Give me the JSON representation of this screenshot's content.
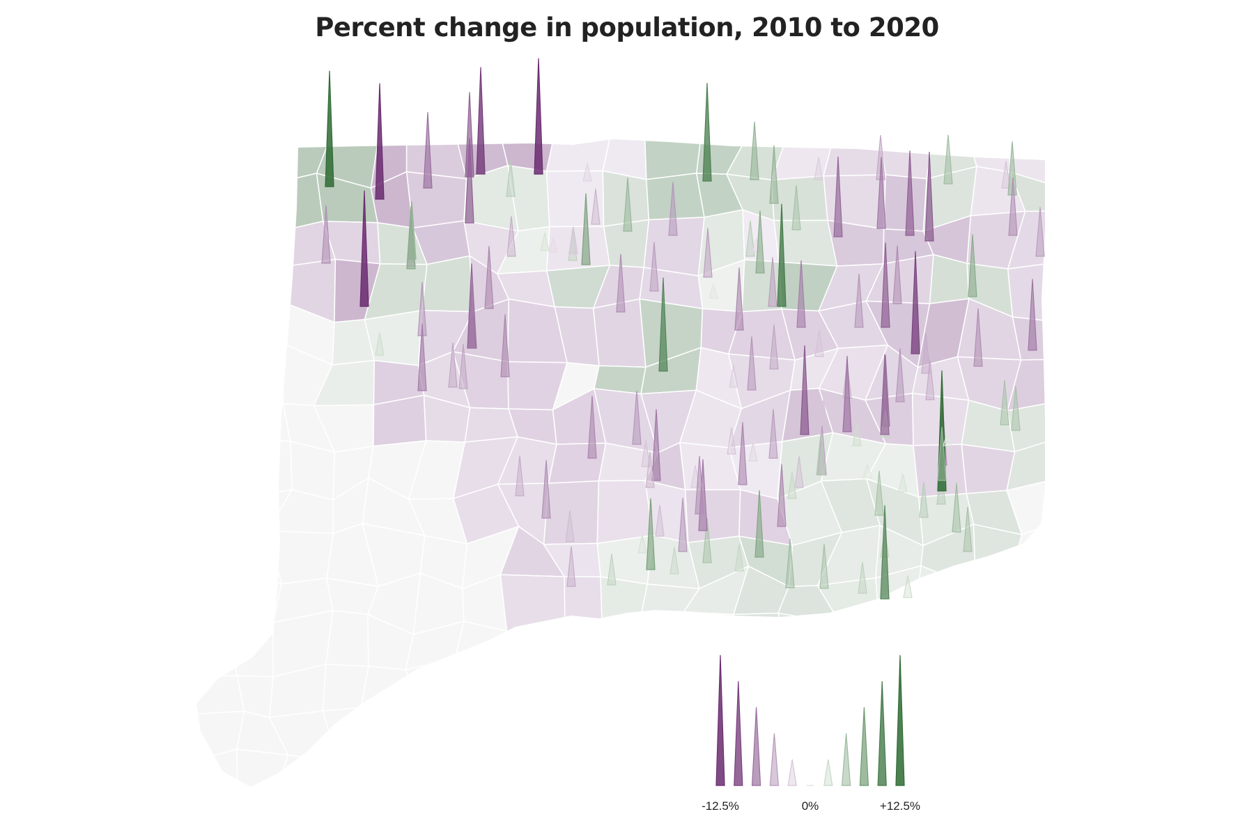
{
  "title": "Percent change in population, 2010 to 2020",
  "legend": {
    "labels": [
      "-12.5%",
      "0%",
      "+12.5%"
    ],
    "steps": [
      -12.5,
      -10,
      -7.5,
      -5,
      -2.5,
      0,
      2.5,
      5,
      7.5,
      10,
      12.5
    ]
  },
  "colors": {
    "decline": "#6a2c70",
    "growth": "#2f6b34",
    "neutral": "#ece8ee",
    "border": "#ffffff",
    "text": "#222222"
  },
  "spikes": [
    {
      "v": 13.0
    },
    {
      "v": -13.0
    },
    {
      "v": -8.5
    },
    {
      "v": -9.5
    },
    {
      "v": -12.0
    },
    {
      "v": -13.0
    },
    {
      "v": -2.0
    },
    {
      "v": -6.5
    },
    {
      "v": -13.0
    },
    {
      "v": -5.0
    },
    {
      "v": -9.5
    },
    {
      "v": 4.0
    },
    {
      "v": 11.0
    },
    {
      "v": 6.5
    },
    {
      "v": -2.5
    },
    {
      "v": -5.0
    },
    {
      "v": -3.0
    },
    {
      "v": 5.5
    },
    {
      "v": 6.5
    },
    {
      "v": 5.0
    },
    {
      "v": 4.0
    },
    {
      "v": -9.0
    },
    {
      "v": -8.0
    },
    {
      "v": -9.5
    },
    {
      "v": -10.0
    },
    {
      "v": -6.5
    },
    {
      "v": -11.5
    },
    {
      "v": 6.0
    },
    {
      "v": -6.5
    },
    {
      "v": -8.0
    },
    {
      "v": -5.5
    },
    {
      "v": 7.0
    },
    {
      "v": 6.0
    },
    {
      "v": -4.0
    },
    {
      "v": -6.0
    },
    {
      "v": 6.5
    },
    {
      "v": -4.5
    },
    {
      "v": -7.0
    },
    {
      "v": -6.0
    },
    {
      "v": -7.5
    },
    {
      "v": -9.5
    },
    {
      "v": -7.0
    },
    {
      "v": -5.0
    },
    {
      "v": -8.0
    },
    {
      "v": 7.0
    },
    {
      "v": 2.5
    },
    {
      "v": -5.0
    },
    {
      "v": 3.5
    },
    {
      "v": 2.0
    },
    {
      "v": -1.5
    },
    {
      "v": -3.0
    },
    {
      "v": 8.0
    },
    {
      "v": 10.5
    },
    {
      "v": -5.5
    },
    {
      "v": -6.5
    },
    {
      "v": -5.5
    },
    {
      "v": -1.5
    },
    {
      "v": -7.0
    },
    {
      "v": 7.0
    },
    {
      "v": 11.5
    },
    {
      "v": -6.0
    },
    {
      "v": 1.5
    },
    {
      "v": -5.5
    },
    {
      "v": -5.0
    },
    {
      "v": -7.5
    },
    {
      "v": -3.0
    },
    {
      "v": -4.0
    },
    {
      "v": -6.0
    },
    {
      "v": -9.5
    },
    {
      "v": -8.0
    },
    {
      "v": -4.5
    },
    {
      "v": -6.5
    },
    {
      "v": -6.0
    },
    {
      "v": 3.0
    },
    {
      "v": -4.5
    },
    {
      "v": 4.0
    },
    {
      "v": 5.0
    },
    {
      "v": 5.0
    },
    {
      "v": -6.5
    },
    {
      "v": 13.5
    },
    {
      "v": 4.0
    },
    {
      "v": 5.5
    },
    {
      "v": 5.0
    },
    {
      "v": 3.0
    },
    {
      "v": 3.5
    },
    {
      "v": 2.5
    },
    {
      "v": 10.5
    },
    {
      "v": 5.0
    },
    {
      "v": 5.5
    },
    {
      "v": 3.0
    },
    {
      "v": 5.0
    },
    {
      "v": 3.0
    },
    {
      "v": 2.0
    },
    {
      "v": -3.5
    },
    {
      "v": 8.0
    },
    {
      "v": 3.5
    },
    {
      "v": -4.5
    },
    {
      "v": -3.5
    },
    {
      "v": -6.5
    },
    {
      "v": -4.5
    },
    {
      "v": -7.0
    },
    {
      "v": -6.0
    },
    {
      "v": -3.0
    },
    {
      "v": -8.0
    },
    {
      "v": -2.5
    },
    {
      "v": -6.0
    },
    {
      "v": -4.0
    },
    {
      "v": -3.0
    },
    {
      "v": -2.5
    },
    {
      "v": -8.0
    },
    {
      "v": -6.5
    },
    {
      "v": -5.5
    },
    {
      "v": -3.0
    },
    {
      "v": -2.0
    },
    {
      "v": -3.5
    },
    {
      "v": -10.0
    },
    {
      "v": -8.5
    },
    {
      "v": -5.5
    },
    {
      "v": -7.0
    },
    {
      "v": 3.0
    },
    {
      "v": 1.5
    },
    {
      "v": 4.5
    },
    {
      "v": 6.0
    },
    {
      "v": 2.0
    },
    {
      "v": 1.5
    },
    {
      "v": 2.5
    },
    {
      "v": -7.0
    },
    {
      "v": 5.0
    },
    {
      "v": -9.0
    },
    {
      "v": 7.5
    }
  ]
}
